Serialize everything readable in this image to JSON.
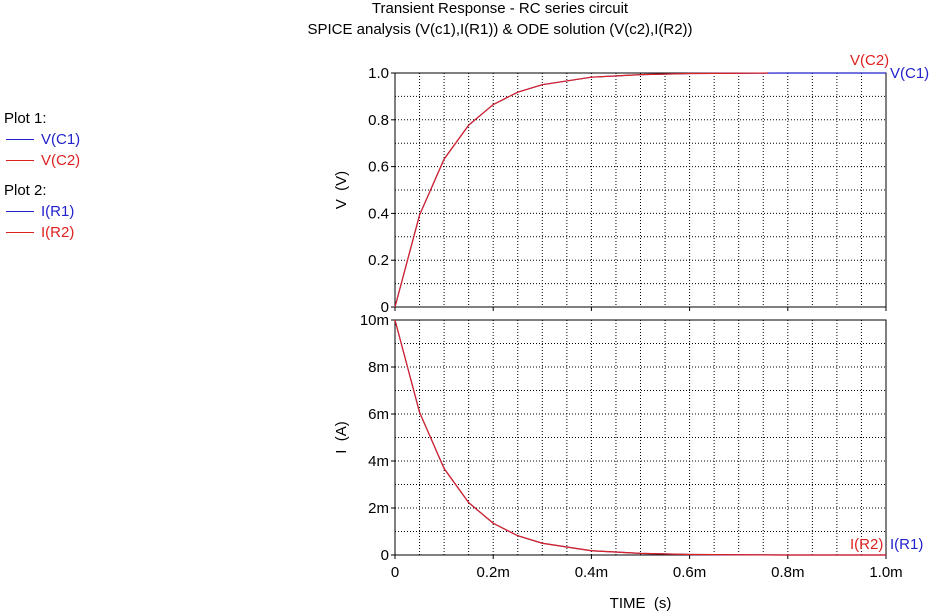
{
  "titles": {
    "line1": "Transient Response  -  RC series circuit",
    "line2": "SPICE analysis (V(c1),I(R1)) & ODE solution (V(c2),I(R2))"
  },
  "legend": {
    "plot1_label": "Plot 1:",
    "plot1_items": [
      "V(C1)",
      "V(C2)"
    ],
    "plot2_label": "Plot 2:",
    "plot2_items": [
      "I(R1)",
      "I(R2)"
    ]
  },
  "colors": {
    "blue": "#2222cc",
    "red": "#dd2222"
  },
  "chart_data": [
    {
      "type": "line",
      "ylabel": "V  (V)",
      "xlim": [
        0,
        0.001
      ],
      "ylim": [
        0,
        1.0
      ],
      "x_ticks": [
        0,
        0.0002,
        0.0004,
        0.0006,
        0.0008,
        0.001
      ],
      "y_ticks": [
        0,
        0.2,
        0.4,
        0.6,
        0.8,
        1.0
      ],
      "y_tick_labels": [
        "0",
        "0.2",
        "0.4",
        "0.6",
        "0.8",
        "1.0"
      ],
      "grid": true,
      "series": [
        {
          "name": "V(C1)",
          "color": "#2222cc",
          "x": [
            0,
            5e-05,
            0.0001,
            0.00015,
            0.0002,
            0.00025,
            0.0003,
            0.0004,
            0.0005,
            0.0006,
            0.0007,
            0.0008,
            0.0009,
            0.001
          ],
          "y": [
            0,
            0.393,
            0.632,
            0.777,
            0.865,
            0.918,
            0.95,
            0.982,
            0.993,
            0.998,
            0.999,
            1.0,
            1.0,
            1.0
          ]
        },
        {
          "name": "V(C2)",
          "color": "#dd2222",
          "x": [
            0,
            5e-05,
            0.0001,
            0.00015,
            0.0002,
            0.00025,
            0.0003,
            0.0004,
            0.0005,
            0.0006,
            0.0007,
            0.00076
          ],
          "y": [
            0,
            0.393,
            0.632,
            0.777,
            0.865,
            0.918,
            0.95,
            0.982,
            0.993,
            0.998,
            0.999,
            1.0
          ]
        }
      ]
    },
    {
      "type": "line",
      "xlabel": "TIME  (s)",
      "ylabel": "I  (A)",
      "xlim": [
        0,
        0.001
      ],
      "ylim": [
        0,
        0.01
      ],
      "x_ticks": [
        0,
        0.0002,
        0.0004,
        0.0006,
        0.0008,
        0.001
      ],
      "x_tick_labels": [
        "0",
        "0.2m",
        "0.4m",
        "0.6m",
        "0.8m",
        "1.0m"
      ],
      "y_ticks": [
        0,
        0.002,
        0.004,
        0.006,
        0.008,
        0.01
      ],
      "y_tick_labels": [
        "0",
        "2m",
        "4m",
        "6m",
        "8m",
        "10m"
      ],
      "grid": true,
      "series": [
        {
          "name": "I(R1)",
          "color": "#2222cc",
          "x": [
            0,
            5e-05,
            0.0001,
            0.00015,
            0.0002,
            0.00025,
            0.0003,
            0.0004,
            0.0005,
            0.0006,
            0.0007,
            0.0008,
            0.0009,
            0.001
          ],
          "y": [
            0.01,
            0.00607,
            0.00368,
            0.00223,
            0.00135,
            0.00082,
            0.0005,
            0.00018,
            7e-05,
            2e-05,
            1e-05,
            0,
            0,
            0
          ]
        },
        {
          "name": "I(R2)",
          "color": "#dd2222",
          "x": [
            0,
            5e-05,
            0.0001,
            0.00015,
            0.0002,
            0.00025,
            0.0003,
            0.0004,
            0.0005,
            0.0006,
            0.0007,
            0.0008,
            0.0009,
            0.001
          ],
          "y": [
            0.01,
            0.00607,
            0.00368,
            0.00223,
            0.00135,
            0.00082,
            0.0005,
            0.00018,
            7e-05,
            2e-05,
            1e-05,
            0,
            0,
            0
          ]
        }
      ]
    }
  ]
}
